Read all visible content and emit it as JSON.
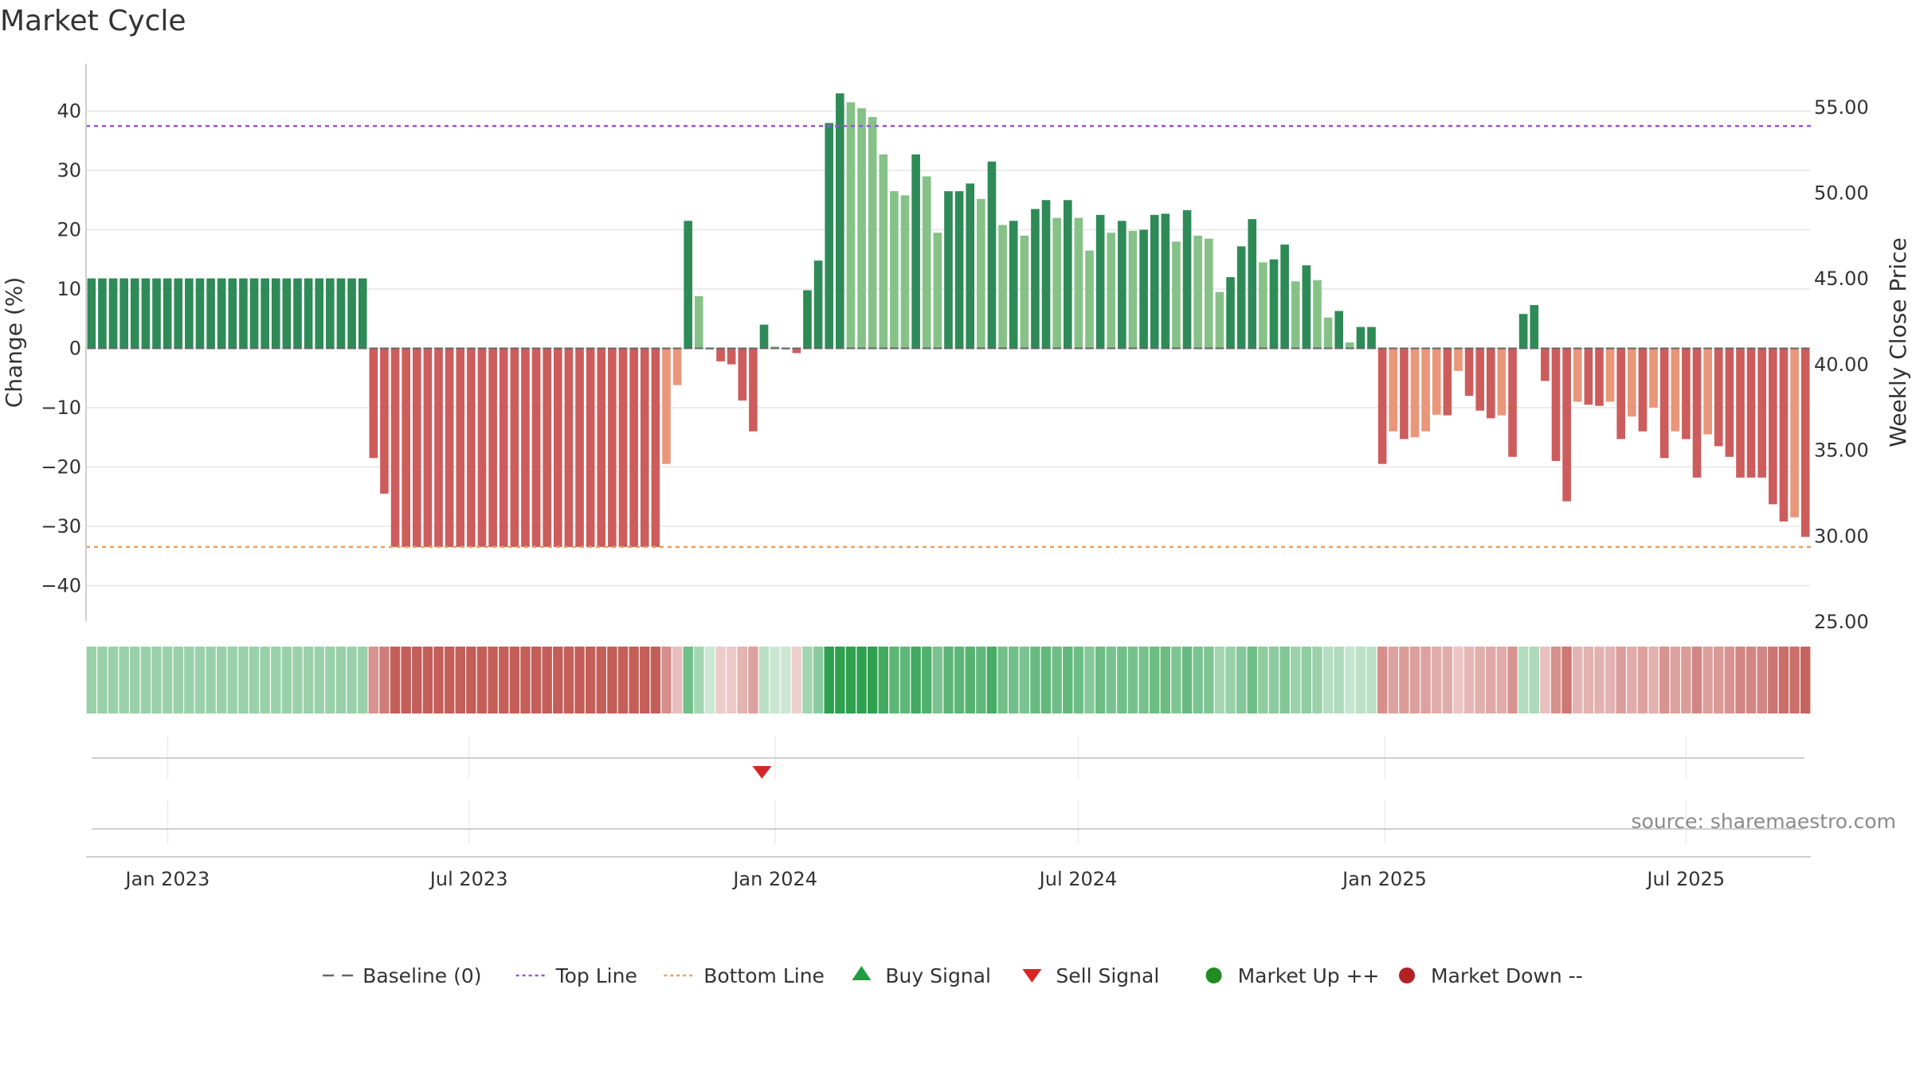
{
  "chart_data": {
    "type": "bar",
    "title": "Market Cycle",
    "ylabel_left": "Change (%)",
    "ylabel_right": "Weekly Close Price",
    "ylim_left": [
      -46,
      48
    ],
    "ylim_right": [
      25,
      57.5
    ],
    "yticks_left": [
      40,
      30,
      20,
      10,
      0,
      -10,
      -20,
      -30,
      -40
    ],
    "ytick_labels_left": [
      "40",
      "30",
      "20",
      "10",
      "0",
      "−10",
      "−20",
      "−30",
      "−40"
    ],
    "yticks_right": [
      55,
      50,
      45,
      40,
      35,
      30,
      25
    ],
    "ytick_labels_right": [
      "55.00",
      "50.00",
      "45.00",
      "40.00",
      "35.00",
      "30.00",
      "25.00"
    ],
    "x_start": "2022-11-13",
    "x_end": "2025-09-14",
    "xticks": [
      "2023-01-01",
      "2023-07-01",
      "2024-01-01",
      "2024-07-01",
      "2025-01-01",
      "2025-07-01"
    ],
    "xtick_labels": [
      "Jan 2023",
      "Jul 2023",
      "Jan 2024",
      "Jul 2024",
      "Jan 2025",
      "Jul 2025"
    ],
    "top_line": 37.5,
    "bottom_line": -33.5,
    "baseline": 0,
    "grid": true,
    "legend_position": "bottom",
    "colors": {
      "up_strong": "#2e8b57",
      "up_light": "#86c288",
      "down_strong": "#cd5c5c",
      "down_light": "#e9967a",
      "top_line": "#9955dd",
      "bottom_line": "#e8a060",
      "baseline": "#666666",
      "buy": "#1e9e3e",
      "sell": "#d62728",
      "market_up": "#228b22",
      "market_down": "#b22222",
      "grid": "#e6e6e6"
    },
    "series": [
      {
        "values": [
          11.8,
          11.8,
          11.8,
          11.8,
          11.8,
          11.8,
          11.8,
          11.8,
          11.8,
          11.8,
          11.8,
          11.8,
          11.8,
          11.8,
          11.8,
          11.8,
          11.8,
          11.8,
          11.8,
          11.8,
          11.8,
          11.8,
          11.8,
          11.8,
          11.8,
          11.8,
          -18.5,
          -24.5,
          -33.5,
          -33.5,
          -33.5,
          -33.5,
          -33.5,
          -33.5,
          -33.5,
          -33.5,
          -33.5,
          -33.5,
          -33.5,
          -33.5,
          -33.5,
          -33.5,
          -33.5,
          -33.5,
          -33.5,
          -33.5,
          -33.5,
          -33.5,
          -33.5,
          -33.5,
          -33.5,
          -33.5,
          -33.5,
          -19.5,
          -6.2,
          21.5,
          8.8,
          0.0,
          -2.2,
          -2.7,
          -8.8,
          -14.0,
          4.0,
          0.3,
          0.0,
          -0.8,
          9.8,
          14.8,
          38.0,
          43.0,
          41.5,
          40.5,
          39.0,
          32.7,
          26.5,
          25.8,
          32.7,
          29.0,
          19.5,
          26.5,
          26.5,
          27.8,
          25.2,
          31.5,
          20.8,
          21.5,
          19.0,
          23.5,
          25.0,
          22.0,
          25.0,
          22.0,
          16.5,
          22.5,
          19.5,
          21.5,
          19.8,
          20.0,
          22.5,
          22.7,
          18.0,
          23.3,
          19.0,
          18.5,
          9.5,
          12.0,
          17.2,
          21.8,
          14.5,
          15.0,
          17.5,
          11.3,
          14.0,
          11.5,
          5.2,
          6.3,
          1.0,
          3.6,
          3.6,
          -19.5,
          -14.0,
          -15.3,
          -15.0,
          -14.0,
          -11.2,
          -11.3,
          -3.8,
          -8.0,
          -10.5,
          -11.8,
          -11.3,
          -18.3,
          5.8,
          7.3,
          -5.5,
          -19.0,
          -25.8,
          -9.0,
          -9.5,
          -9.7,
          -9.0,
          -15.3,
          -11.5,
          -14.0,
          -10.0,
          -18.5,
          -14.0,
          -15.3,
          -21.8,
          -14.5,
          -16.5,
          -18.3,
          -21.8,
          -21.8,
          -21.8,
          -26.3,
          -29.2,
          -28.5,
          -31.8
        ]
      }
    ],
    "sell_signal_date": "2023-12-24",
    "signal_lanes": [
      "Buy Signal / Sell Signal",
      "Market Up ++ / Market Down --"
    ],
    "source": "source: sharemaestro.com"
  },
  "legend": [
    {
      "label": "Baseline (0)",
      "kind": "dash",
      "color": "#666666"
    },
    {
      "label": "Top Line",
      "kind": "dot",
      "color": "#9955dd"
    },
    {
      "label": "Bottom Line",
      "kind": "dot",
      "color": "#e8a060"
    },
    {
      "label": "Buy Signal",
      "kind": "triangle-up",
      "color": "#1e9e3e"
    },
    {
      "label": "Sell Signal",
      "kind": "triangle-down",
      "color": "#d62728"
    },
    {
      "label": "Market Up ++",
      "kind": "circle",
      "color": "#228b22"
    },
    {
      "label": "Market Down --",
      "kind": "circle",
      "color": "#b22222"
    }
  ]
}
